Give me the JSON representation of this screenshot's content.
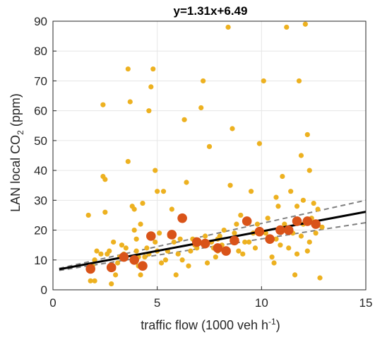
{
  "chart_data": {
    "type": "scatter",
    "title": "y=1.31x+6.49",
    "xlabel": "traffic flow (1000 veh h⁻¹)",
    "xlabel_main": "traffic flow (1000 veh h",
    "xlabel_sup": "-1",
    "xlabel_end": ")",
    "ylabel": "LAN local CO₂ (ppm)",
    "ylabel_main": "LAN local CO",
    "ylabel_sub": "2",
    "ylabel_end": " (ppm)",
    "xlim": [
      0,
      15
    ],
    "ylim": [
      0,
      90
    ],
    "xticks": [
      0,
      5,
      10,
      15
    ],
    "yticks": [
      0,
      10,
      20,
      30,
      40,
      50,
      60,
      70,
      80,
      90
    ],
    "grid": true,
    "colors": {
      "points": "#EDB120",
      "binned": "#D95319",
      "fit": "#000000",
      "ci": "#808080",
      "grid": "#e6e6e6"
    },
    "series": [
      {
        "kind": "points",
        "points": [
          [
            1.7,
            25
          ],
          [
            1.8,
            3
          ],
          [
            2.0,
            3
          ],
          [
            2.0,
            10
          ],
          [
            2.1,
            13
          ],
          [
            2.4,
            38
          ],
          [
            2.5,
            37
          ],
          [
            2.4,
            62
          ],
          [
            2.5,
            26
          ],
          [
            2.6,
            12
          ],
          [
            2.7,
            13
          ],
          [
            2.9,
            7
          ],
          [
            3.0,
            5
          ],
          [
            3.1,
            9
          ],
          [
            2.8,
            2
          ],
          [
            3.3,
            15
          ],
          [
            3.4,
            12
          ],
          [
            3.6,
            43
          ],
          [
            3.6,
            74
          ],
          [
            3.7,
            63
          ],
          [
            3.8,
            28
          ],
          [
            3.9,
            27
          ],
          [
            3.9,
            20
          ],
          [
            4.0,
            17
          ],
          [
            4.0,
            13
          ],
          [
            4.1,
            11
          ],
          [
            4.2,
            5
          ],
          [
            4.2,
            22
          ],
          [
            4.3,
            29
          ],
          [
            4.4,
            11
          ],
          [
            4.5,
            14
          ],
          [
            4.6,
            60
          ],
          [
            4.7,
            68
          ],
          [
            4.8,
            74
          ],
          [
            4.9,
            40
          ],
          [
            5.0,
            33
          ],
          [
            5.0,
            13
          ],
          [
            5.1,
            19
          ],
          [
            5.3,
            33
          ],
          [
            5.4,
            10
          ],
          [
            5.6,
            18
          ],
          [
            5.7,
            27
          ],
          [
            5.9,
            5
          ],
          [
            6.0,
            12
          ],
          [
            6.1,
            17
          ],
          [
            6.2,
            10
          ],
          [
            6.3,
            57
          ],
          [
            6.4,
            36
          ],
          [
            6.5,
            8
          ],
          [
            6.7,
            17
          ],
          [
            6.9,
            14
          ],
          [
            7.1,
            61
          ],
          [
            7.2,
            70
          ],
          [
            7.3,
            18
          ],
          [
            7.4,
            9
          ],
          [
            7.5,
            48
          ],
          [
            7.6,
            16
          ],
          [
            7.8,
            11
          ],
          [
            7.9,
            13
          ],
          [
            8.0,
            18
          ],
          [
            8.2,
            20
          ],
          [
            8.4,
            88
          ],
          [
            8.5,
            35
          ],
          [
            8.6,
            54
          ],
          [
            8.7,
            19
          ],
          [
            8.8,
            22
          ],
          [
            9.0,
            25
          ],
          [
            9.1,
            12
          ],
          [
            9.2,
            16
          ],
          [
            9.4,
            16
          ],
          [
            9.5,
            33
          ],
          [
            9.7,
            14
          ],
          [
            9.9,
            49
          ],
          [
            10.1,
            70
          ],
          [
            10.2,
            19
          ],
          [
            10.3,
            24
          ],
          [
            10.4,
            17
          ],
          [
            10.5,
            11
          ],
          [
            10.6,
            9
          ],
          [
            10.7,
            31
          ],
          [
            10.8,
            28
          ],
          [
            10.9,
            15
          ],
          [
            11.0,
            38
          ],
          [
            11.1,
            22
          ],
          [
            11.2,
            88
          ],
          [
            11.3,
            14
          ],
          [
            11.4,
            33
          ],
          [
            11.5,
            19
          ],
          [
            11.6,
            5
          ],
          [
            11.7,
            28
          ],
          [
            11.8,
            70
          ],
          [
            11.9,
            45
          ],
          [
            12.0,
            22
          ],
          [
            12.1,
            89
          ],
          [
            12.2,
            52
          ],
          [
            12.2,
            13
          ],
          [
            12.3,
            40
          ],
          [
            12.4,
            24
          ],
          [
            12.5,
            29
          ],
          [
            12.6,
            19
          ],
          [
            12.7,
            27
          ],
          [
            12.8,
            4
          ],
          [
            12.9,
            21
          ],
          [
            12.3,
            16
          ],
          [
            11.9,
            18
          ],
          [
            12.0,
            30
          ],
          [
            11.7,
            12
          ],
          [
            10.9,
            20
          ],
          [
            10.7,
            17
          ],
          [
            9.8,
            22
          ],
          [
            9.6,
            19
          ],
          [
            8.9,
            13
          ],
          [
            8.1,
            15
          ],
          [
            7.9,
            17
          ],
          [
            7.7,
            14
          ],
          [
            7.0,
            16
          ],
          [
            6.8,
            15
          ],
          [
            6.6,
            13
          ],
          [
            5.8,
            16
          ],
          [
            5.5,
            13
          ],
          [
            5.2,
            9
          ],
          [
            4.9,
            16
          ],
          [
            4.6,
            12
          ],
          [
            4.1,
            8
          ],
          [
            3.5,
            14
          ],
          [
            3.2,
            11
          ],
          [
            2.9,
            16
          ],
          [
            2.3,
            12
          ],
          [
            1.9,
            8
          ]
        ]
      },
      {
        "kind": "binned",
        "points": [
          [
            1.8,
            7
          ],
          [
            2.8,
            7.5
          ],
          [
            3.4,
            11
          ],
          [
            3.9,
            10
          ],
          [
            4.3,
            8
          ],
          [
            4.7,
            18
          ],
          [
            5.7,
            18.5
          ],
          [
            6.2,
            24
          ],
          [
            6.9,
            16
          ],
          [
            7.3,
            15.5
          ],
          [
            7.9,
            14
          ],
          [
            8.3,
            13
          ],
          [
            8.7,
            16.5
          ],
          [
            9.3,
            23
          ],
          [
            9.9,
            19.5
          ],
          [
            10.4,
            17
          ],
          [
            10.9,
            20
          ],
          [
            11.3,
            20
          ],
          [
            11.7,
            23
          ],
          [
            12.2,
            23
          ],
          [
            12.6,
            22
          ]
        ]
      }
    ],
    "fit": {
      "slope": 1.31,
      "intercept": 6.49,
      "x_range": [
        0.3,
        15
      ]
    },
    "ci_upper": [
      [
        0.3,
        7.2
      ],
      [
        15,
        30
      ]
    ],
    "ci_lower": [
      [
        0.3,
        6.5
      ],
      [
        15,
        22.5
      ]
    ]
  }
}
